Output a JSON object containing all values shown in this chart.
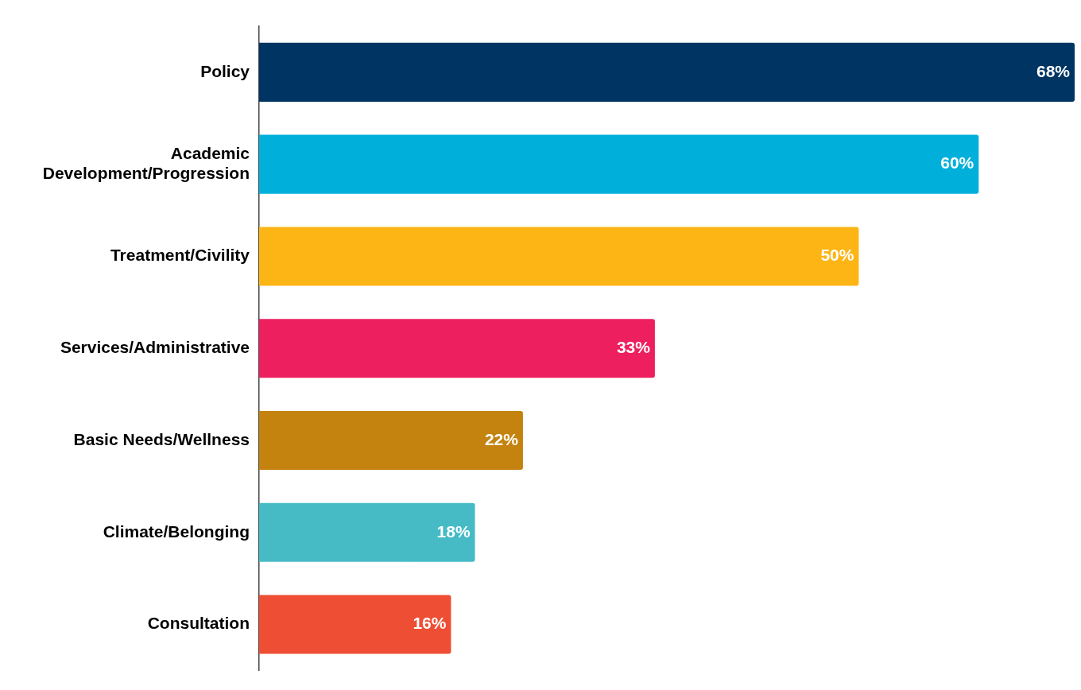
{
  "chart_data": {
    "type": "bar",
    "orientation": "horizontal",
    "categories": [
      "Policy",
      "Academic Development/Progression",
      "Treatment/Civility",
      "Services/Administrative",
      "Basic Needs/Wellness",
      "Climate/Belonging",
      "Consultation"
    ],
    "values": [
      68,
      60,
      50,
      33,
      22,
      18,
      16
    ],
    "value_labels": [
      "68%",
      "60%",
      "50%",
      "33%",
      "22%",
      "18%",
      "16%"
    ],
    "colors": [
      "#003462",
      "#00b0db",
      "#fdb515",
      "#ed1f5f",
      "#c4820e",
      "#46bbc6",
      "#ee4e33"
    ],
    "legend": false
  }
}
